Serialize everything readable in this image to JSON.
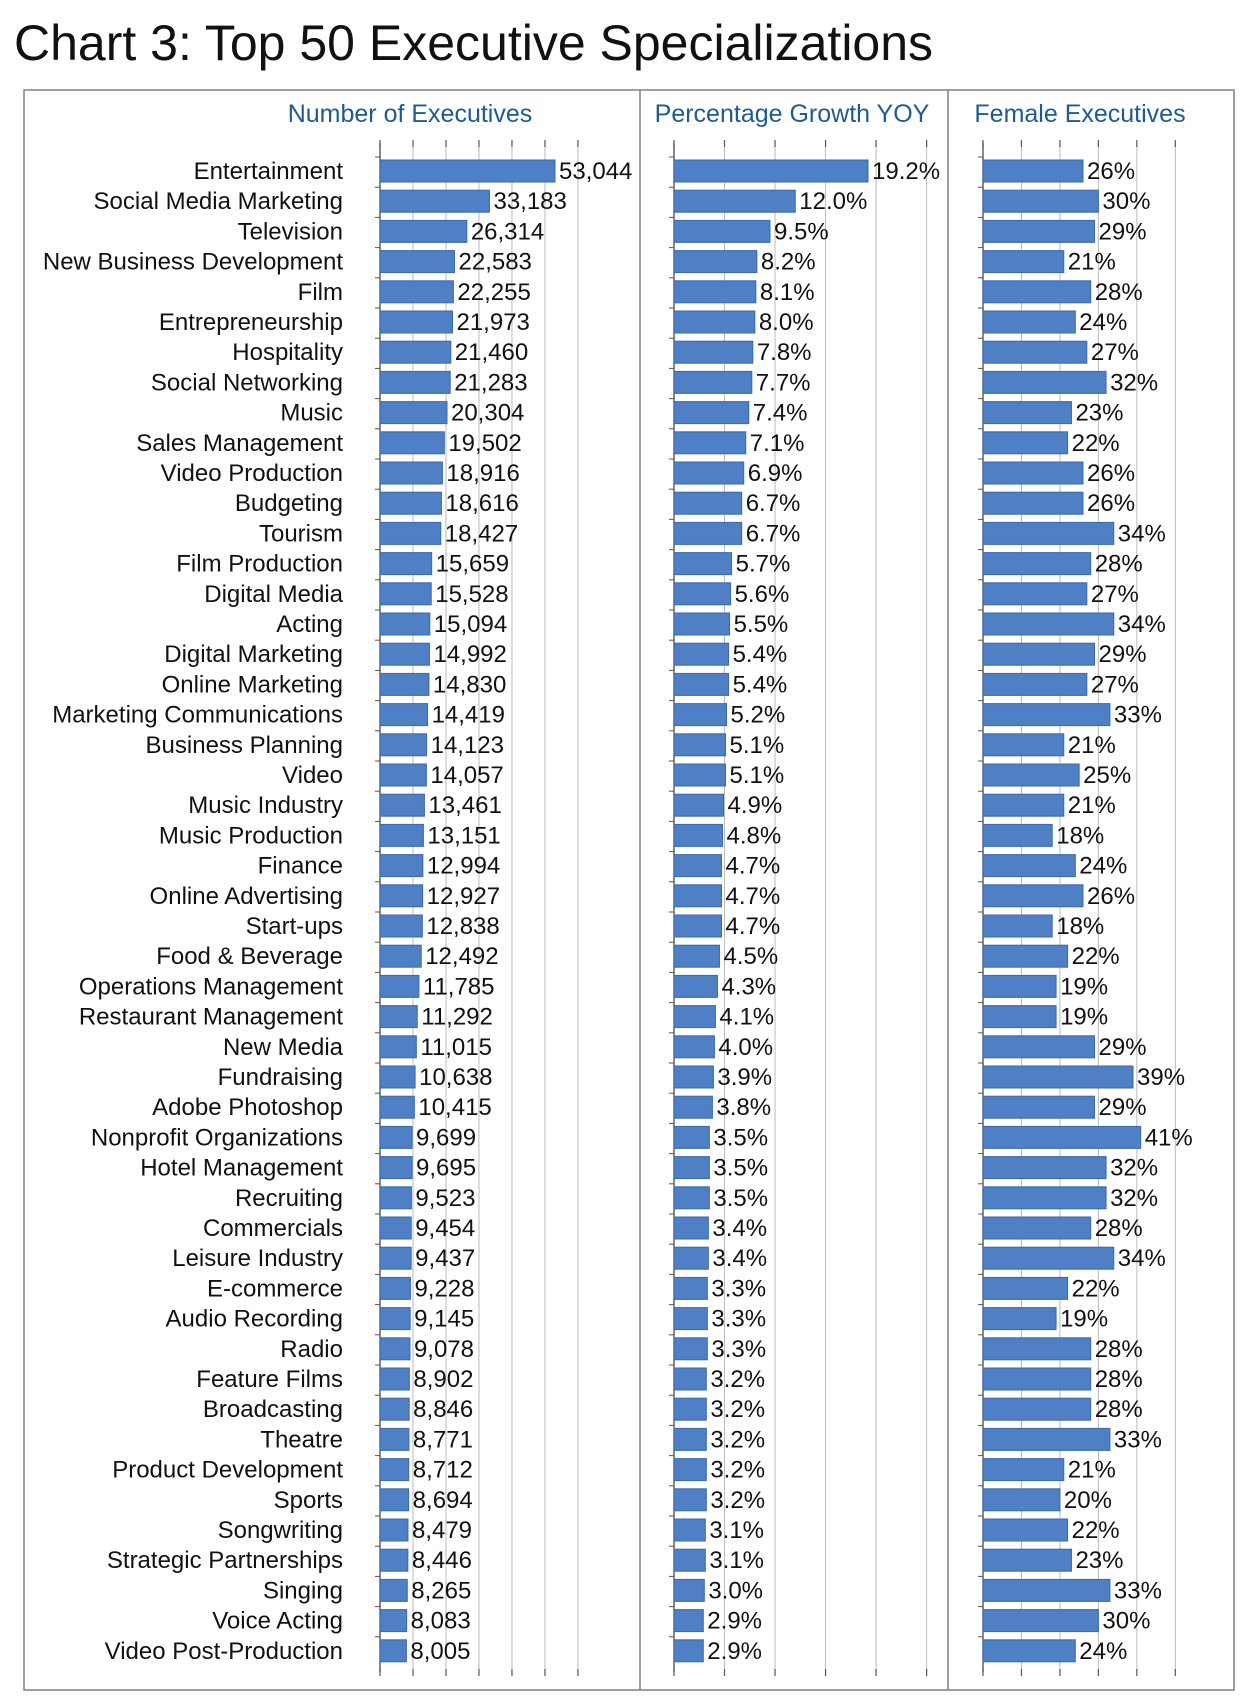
{
  "title": "Chart 3: Top 50 Executive Specializations",
  "colors": {
    "bar": "#4f7fc4",
    "bar_edge": "#3a6aaa",
    "panel_title": "#1f5a93",
    "grid": "#808080"
  },
  "chart_data": {
    "type": "bar",
    "orientation": "horizontal",
    "title": "Chart 3: Top 50 Executive Specializations",
    "categories": [
      "Entertainment",
      "Social Media Marketing",
      "Television",
      "New Business Development",
      "Film",
      "Entrepreneurship",
      "Hospitality",
      "Social Networking",
      "Music",
      "Sales Management",
      "Video Production",
      "Budgeting",
      "Tourism",
      "Film Production",
      "Digital Media",
      "Acting",
      "Digital Marketing",
      "Online Marketing",
      "Marketing Communications",
      "Business Planning",
      "Video",
      "Music Industry",
      "Music Production",
      "Finance",
      "Online Advertising",
      "Start-ups",
      "Food & Beverage",
      "Operations Management",
      "Restaurant Management",
      "New Media",
      "Fundraising",
      "Adobe Photoshop",
      "Nonprofit Organizations",
      "Hotel Management",
      "Recruiting",
      "Commercials",
      "Leisure Industry",
      "E-commerce",
      "Audio Recording",
      "Radio",
      "Feature Films",
      "Broadcasting",
      "Theatre",
      "Product Development",
      "Sports",
      "Songwriting",
      "Strategic Partnerships",
      "Singing",
      "Voice Acting",
      "Video Post-Production"
    ],
    "panels": [
      {
        "name": "Number of Executives",
        "values": [
          53044,
          33183,
          26314,
          22583,
          22255,
          21973,
          21460,
          21283,
          20304,
          19502,
          18916,
          18616,
          18427,
          15659,
          15528,
          15094,
          14992,
          14830,
          14419,
          14123,
          14057,
          13461,
          13151,
          12994,
          12927,
          12838,
          12492,
          11785,
          11292,
          11015,
          10638,
          10415,
          9699,
          9695,
          9523,
          9454,
          9437,
          9228,
          9145,
          9078,
          8902,
          8846,
          8771,
          8712,
          8694,
          8479,
          8446,
          8265,
          8083,
          8005
        ],
        "labels": [
          "53,044",
          "33,183",
          "26,314",
          "22,583",
          "22,255",
          "21,973",
          "21,460",
          "21,283",
          "20,304",
          "19,502",
          "18,916",
          "18,616",
          "18,427",
          "15,659",
          "15,528",
          "15,094",
          "14,992",
          "14,830",
          "14,419",
          "14,123",
          "14,057",
          "13,461",
          "13,151",
          "12,994",
          "12,927",
          "12,838",
          "12,492",
          "11,785",
          "11,292",
          "11,015",
          "10,638",
          "10,415",
          "9,699",
          "9,695",
          "9,523",
          "9,454",
          "9,437",
          "9,228",
          "9,145",
          "9,078",
          "8,902",
          "8,846",
          "8,771",
          "8,712",
          "8,694",
          "8,479",
          "8,446",
          "8,265",
          "8,083",
          "8,005"
        ],
        "xlim": [
          0,
          60000
        ]
      },
      {
        "name": "Percentage Growth YOY",
        "values": [
          19.2,
          12.0,
          9.5,
          8.2,
          8.1,
          8.0,
          7.8,
          7.7,
          7.4,
          7.1,
          6.9,
          6.7,
          6.7,
          5.7,
          5.6,
          5.5,
          5.4,
          5.4,
          5.2,
          5.1,
          5.1,
          4.9,
          4.8,
          4.7,
          4.7,
          4.7,
          4.5,
          4.3,
          4.1,
          4.0,
          3.9,
          3.8,
          3.5,
          3.5,
          3.5,
          3.4,
          3.4,
          3.3,
          3.3,
          3.3,
          3.2,
          3.2,
          3.2,
          3.2,
          3.2,
          3.1,
          3.1,
          3.0,
          2.9,
          2.9
        ],
        "labels": [
          "19.2%",
          "12.0%",
          "9.5%",
          "8.2%",
          "8.1%",
          "8.0%",
          "7.8%",
          "7.7%",
          "7.4%",
          "7.1%",
          "6.9%",
          "6.7%",
          "6.7%",
          "5.7%",
          "5.6%",
          "5.5%",
          "5.4%",
          "5.4%",
          "5.2%",
          "5.1%",
          "5.1%",
          "4.9%",
          "4.8%",
          "4.7%",
          "4.7%",
          "4.7%",
          "4.5%",
          "4.3%",
          "4.1%",
          "4.0%",
          "3.9%",
          "3.8%",
          "3.5%",
          "3.5%",
          "3.5%",
          "3.4%",
          "3.4%",
          "3.3%",
          "3.3%",
          "3.3%",
          "3.2%",
          "3.2%",
          "3.2%",
          "3.2%",
          "3.2%",
          "3.1%",
          "3.1%",
          "3.0%",
          "2.9%",
          "2.9%"
        ],
        "xlim": [
          0,
          25
        ]
      },
      {
        "name": "Female Executives",
        "values": [
          26,
          30,
          29,
          21,
          28,
          24,
          27,
          32,
          23,
          22,
          26,
          26,
          34,
          28,
          27,
          34,
          29,
          27,
          33,
          21,
          25,
          21,
          18,
          24,
          26,
          18,
          22,
          19,
          19,
          29,
          39,
          29,
          41,
          32,
          32,
          28,
          34,
          22,
          19,
          28,
          28,
          28,
          33,
          21,
          20,
          22,
          23,
          33,
          30,
          24
        ],
        "labels": [
          "26%",
          "30%",
          "29%",
          "21%",
          "28%",
          "24%",
          "27%",
          "32%",
          "23%",
          "22%",
          "26%",
          "26%",
          "34%",
          "28%",
          "27%",
          "34%",
          "29%",
          "27%",
          "33%",
          "21%",
          "25%",
          "21%",
          "18%",
          "24%",
          "26%",
          "18%",
          "22%",
          "19%",
          "19%",
          "29%",
          "39%",
          "29%",
          "41%",
          "32%",
          "32%",
          "28%",
          "34%",
          "22%",
          "19%",
          "28%",
          "28%",
          "28%",
          "33%",
          "21%",
          "20%",
          "22%",
          "23%",
          "33%",
          "30%",
          "24%"
        ],
        "xlim": [
          0,
          50
        ]
      }
    ],
    "grid": true,
    "legend": "none"
  }
}
